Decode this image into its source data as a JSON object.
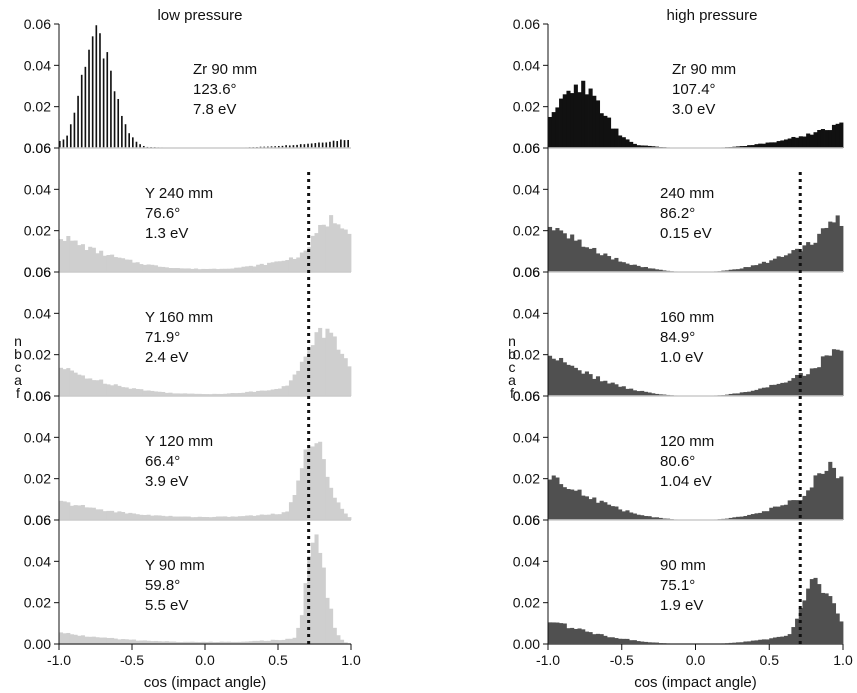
{
  "chart_data": {
    "type": "bar",
    "x_range": [
      -1.0,
      1.0
    ],
    "y_range": [
      0.0,
      0.06
    ],
    "x_ticks": [
      "-1.0",
      "-0.5",
      "0.0",
      "0.5",
      "1.0"
    ],
    "y_ticks_middle": [
      "0.06",
      "0.04",
      "0.02"
    ],
    "y_ticks_bottom": [
      "0.06",
      "0.04",
      "0.02",
      "0.00"
    ],
    "xlabel": "cos (impact angle)",
    "ylabel_chars": [
      "n",
      "b",
      "c",
      "a",
      "f"
    ],
    "dotted_line_x": 0.71,
    "columns": [
      {
        "title": "low pressure",
        "panels": [
          {
            "label": [
              "Zr 90 mm",
              "123.6°",
              "7.8 eV"
            ],
            "color": "#111111",
            "style": "spikes",
            "peak_x": -0.75,
            "peak_y": 0.054,
            "width": 0.13,
            "tail_left": 0.004,
            "tail_right": 0.0045,
            "min_y": 0.0
          },
          {
            "label": [
              "Y 240 mm",
              "76.6°",
              "1.3 eV"
            ],
            "color": "#cfcfcf",
            "style": "fill",
            "peak_x": 0.88,
            "peak_y": 0.025,
            "width": 0.2,
            "tail_left": 0.018,
            "tail_right": 0.0,
            "min_y": 0.0015
          },
          {
            "label": [
              "Y 160 mm",
              "71.9°",
              "2.4 eV"
            ],
            "color": "#cfcfcf",
            "style": "fill",
            "peak_x": 0.8,
            "peak_y": 0.031,
            "width": 0.17,
            "tail_left": 0.014,
            "tail_right": 0.0,
            "min_y": 0.001
          },
          {
            "label": [
              "Y 120 mm",
              "66.4°",
              "3.9 eV"
            ],
            "color": "#cfcfcf",
            "style": "fill",
            "peak_x": 0.73,
            "peak_y": 0.04,
            "width": 0.11,
            "tail_left": 0.009,
            "tail_right": 0.0,
            "min_y": 0.0015
          },
          {
            "label": [
              "Y 90 mm",
              "59.8°",
              "5.5 eV"
            ],
            "color": "#cfcfcf",
            "style": "fill",
            "peak_x": 0.75,
            "peak_y": 0.05,
            "width": 0.08,
            "tail_left": 0.0055,
            "tail_right": 0.0,
            "min_y": 0.001
          }
        ]
      },
      {
        "title": "high pressure",
        "panels": [
          {
            "label": [
              "Zr 90 mm",
              "107.4°",
              "3.0 eV"
            ],
            "color": "#111111",
            "style": "fill",
            "peak_x": -0.8,
            "peak_y": 0.03,
            "width": 0.18,
            "tail_left": 0.016,
            "tail_right": 0.012,
            "min_y": 0.0
          },
          {
            "label": [
              "240 mm",
              "86.2°",
              "0.15 eV"
            ],
            "color": "#505050",
            "style": "fill",
            "peak_x": 0.97,
            "peak_y": 0.024,
            "width": 0.2,
            "tail_left": 0.024,
            "tail_right": 0.0,
            "min_y": 0.0
          },
          {
            "label": [
              "160 mm",
              "84.9°",
              "1.0 eV"
            ],
            "color": "#505050",
            "style": "fill",
            "peak_x": 0.97,
            "peak_y": 0.021,
            "width": 0.2,
            "tail_left": 0.021,
            "tail_right": 0.0,
            "min_y": 0.0
          },
          {
            "label": [
              "120 mm",
              "80.6°",
              "1.04 eV"
            ],
            "color": "#505050",
            "style": "fill",
            "peak_x": 0.92,
            "peak_y": 0.023,
            "width": 0.2,
            "tail_left": 0.023,
            "tail_right": 0.0,
            "min_y": 0.0
          },
          {
            "label": [
              "90 mm",
              "75.1°",
              "1.9 eV"
            ],
            "color": "#505050",
            "style": "fill",
            "peak_x": 0.82,
            "peak_y": 0.029,
            "width": 0.13,
            "tail_left": 0.012,
            "tail_right": 0.0,
            "min_y": 0.0
          }
        ]
      }
    ]
  }
}
